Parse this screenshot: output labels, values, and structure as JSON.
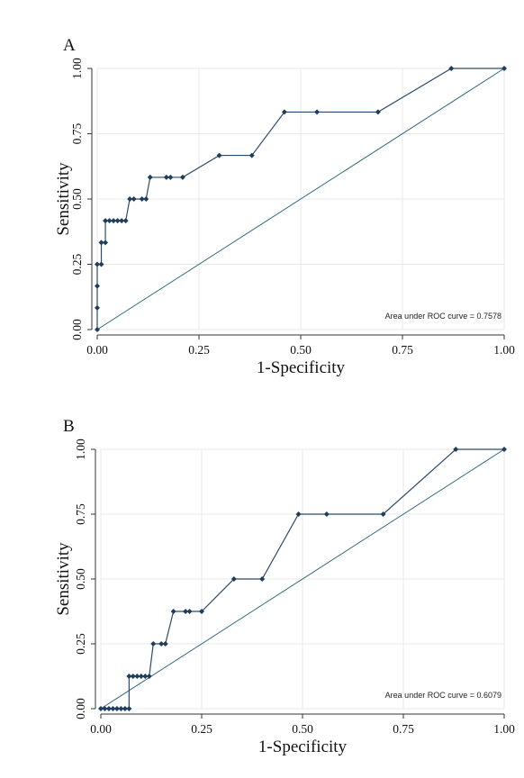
{
  "chart_data": [
    {
      "type": "line",
      "panel_label": "A",
      "xlabel": "1-Specificity",
      "ylabel": "Sensitivity",
      "xlim": [
        0,
        1
      ],
      "ylim": [
        0,
        1
      ],
      "x_ticks": [
        "0.00",
        "0.25",
        "0.50",
        "0.75",
        "1.00"
      ],
      "y_ticks": [
        "0.00",
        "0.25",
        "0.50",
        "0.75",
        "1.00"
      ],
      "grid": true,
      "annotation": "Area under ROC curve = 0.7578",
      "reference_line": [
        [
          0,
          0
        ],
        [
          1,
          1
        ]
      ],
      "series": [
        {
          "points": [
            [
              0.0,
              0.0
            ],
            [
              0.0,
              0.083
            ],
            [
              0.0,
              0.167
            ],
            [
              0.0,
              0.25
            ],
            [
              0.01,
              0.25
            ],
            [
              0.01,
              0.333
            ],
            [
              0.02,
              0.333
            ],
            [
              0.02,
              0.417
            ],
            [
              0.03,
              0.417
            ],
            [
              0.04,
              0.417
            ],
            [
              0.05,
              0.417
            ],
            [
              0.06,
              0.417
            ],
            [
              0.07,
              0.417
            ],
            [
              0.08,
              0.5
            ],
            [
              0.09,
              0.5
            ],
            [
              0.11,
              0.5
            ],
            [
              0.12,
              0.5
            ],
            [
              0.13,
              0.583
            ],
            [
              0.17,
              0.583
            ],
            [
              0.18,
              0.583
            ],
            [
              0.21,
              0.583
            ],
            [
              0.3,
              0.667
            ],
            [
              0.38,
              0.667
            ],
            [
              0.46,
              0.833
            ],
            [
              0.54,
              0.833
            ],
            [
              0.69,
              0.833
            ],
            [
              0.87,
              1.0
            ],
            [
              1.0,
              1.0
            ]
          ]
        }
      ]
    },
    {
      "type": "line",
      "panel_label": "B",
      "xlabel": "1-Specificity",
      "ylabel": "Sensitivity",
      "xlim": [
        0,
        1
      ],
      "ylim": [
        0,
        1
      ],
      "x_ticks": [
        "0.00",
        "0.25",
        "0.50",
        "0.75",
        "1.00"
      ],
      "y_ticks": [
        "0.00",
        "0.25",
        "0.50",
        "0.75",
        "1.00"
      ],
      "grid": true,
      "annotation": "Area under ROC curve = 0.6079",
      "reference_line": [
        [
          0,
          0
        ],
        [
          1,
          1
        ]
      ],
      "series": [
        {
          "points": [
            [
              0.0,
              0.0
            ],
            [
              0.01,
              0.0
            ],
            [
              0.02,
              0.0
            ],
            [
              0.03,
              0.0
            ],
            [
              0.04,
              0.0
            ],
            [
              0.05,
              0.0
            ],
            [
              0.06,
              0.0
            ],
            [
              0.07,
              0.0
            ],
            [
              0.07,
              0.125
            ],
            [
              0.08,
              0.125
            ],
            [
              0.09,
              0.125
            ],
            [
              0.1,
              0.125
            ],
            [
              0.11,
              0.125
            ],
            [
              0.12,
              0.125
            ],
            [
              0.13,
              0.25
            ],
            [
              0.15,
              0.25
            ],
            [
              0.16,
              0.25
            ],
            [
              0.18,
              0.375
            ],
            [
              0.21,
              0.375
            ],
            [
              0.22,
              0.375
            ],
            [
              0.25,
              0.375
            ],
            [
              0.33,
              0.5
            ],
            [
              0.4,
              0.5
            ],
            [
              0.49,
              0.75
            ],
            [
              0.56,
              0.75
            ],
            [
              0.7,
              0.75
            ],
            [
              0.88,
              1.0
            ],
            [
              1.0,
              1.0
            ]
          ]
        }
      ]
    }
  ]
}
